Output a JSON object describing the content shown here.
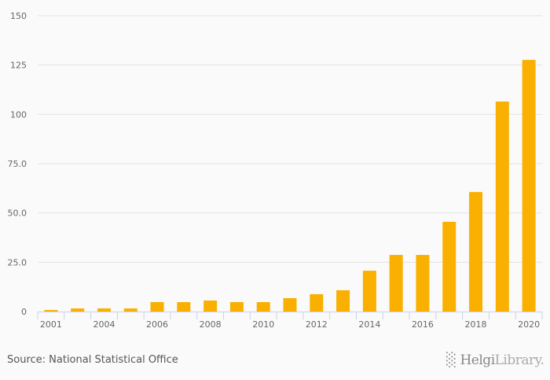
{
  "chart_data": {
    "type": "bar",
    "title": "",
    "xlabel": "",
    "ylabel": "",
    "categories": [
      "2001",
      "2003",
      "2004",
      "2005",
      "2006",
      "2007",
      "2008",
      "2009",
      "2010",
      "2011",
      "2012",
      "2013",
      "2014",
      "2015",
      "2016",
      "2017",
      "2018",
      "2019",
      "2020"
    ],
    "values": [
      0.8,
      1.6,
      1.6,
      1.6,
      4.8,
      4.8,
      5.6,
      4.8,
      4.8,
      6.8,
      8.8,
      10.8,
      20.7,
      28.7,
      28.7,
      45.5,
      60.6,
      106.5,
      127.6
    ],
    "x_tick_labels": [
      "2001",
      "",
      "2004",
      "",
      "2006",
      "",
      "2008",
      "",
      "2010",
      "",
      "2012",
      "",
      "2014",
      "",
      "2016",
      "",
      "2018",
      "",
      "2020"
    ],
    "y_ticks": [
      0,
      25,
      50,
      75,
      100,
      125,
      150
    ],
    "y_tick_labels": [
      "0",
      "25.0",
      "50.0",
      "75.0",
      "100",
      "125",
      "150"
    ],
    "ylim": [
      0,
      150
    ],
    "grid": true,
    "bar_color": "#f9b000"
  },
  "footer": {
    "source": "Source: National Statistical Office",
    "logo_text": "HelgiLibrary."
  }
}
